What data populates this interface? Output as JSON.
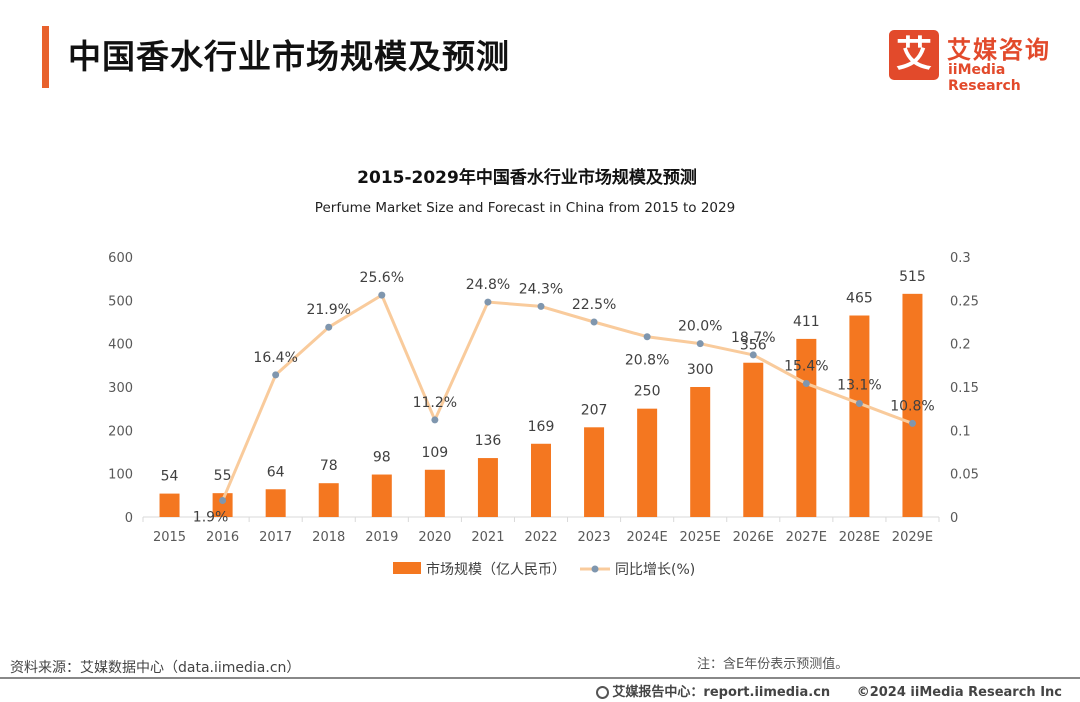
{
  "header": {
    "title": "中国香水行业市场规模及预测",
    "logo_box": "艾",
    "logo_cn": "艾媒咨询",
    "logo_en": "iiMedia Research"
  },
  "chart_data": {
    "type": "bar+line",
    "title": "2015-2029年中国香水行业市场规模及预测",
    "subtitle": "Perfume Market Size and Forecast in China from 2015 to 2029",
    "categories": [
      "2015",
      "2016",
      "2017",
      "2018",
      "2019",
      "2020",
      "2021",
      "2022",
      "2023",
      "2024E",
      "2025E",
      "2026E",
      "2027E",
      "2028E",
      "2029E"
    ],
    "series": [
      {
        "name": "市场规模（亿人民币）",
        "type": "bar",
        "axis": "left",
        "color": "#F47720",
        "values": [
          54,
          55,
          64,
          78,
          98,
          109,
          136,
          169,
          207,
          250,
          300,
          356,
          411,
          465,
          515
        ]
      },
      {
        "name": "同比增长(%)",
        "type": "line",
        "axis": "right",
        "color": "#F9CB9C",
        "marker_color": "#7F96AE",
        "values": [
          null,
          0.019,
          0.164,
          0.219,
          0.256,
          0.112,
          0.248,
          0.243,
          0.225,
          0.208,
          0.2,
          0.187,
          0.154,
          0.131,
          0.108
        ],
        "labels": [
          "",
          "1.9%",
          "16.4%",
          "21.9%",
          "25.6%",
          "11.2%",
          "24.8%",
          "24.3%",
          "22.5%",
          "20.8%",
          "20.0%",
          "18.7%",
          "15.4%",
          "13.1%",
          "10.8%"
        ]
      }
    ],
    "y_left": {
      "min": 0,
      "max": 600,
      "ticks": [
        0,
        100,
        200,
        300,
        400,
        500,
        600
      ]
    },
    "y_right": {
      "min": 0,
      "max": 0.3,
      "ticks": [
        "0",
        "0.05",
        "0.1",
        "0.15",
        "0.2",
        "0.25",
        "0.3"
      ]
    },
    "legend_position": "bottom"
  },
  "footer": {
    "source": "资料来源：艾媒数据中心（data.iimedia.cn）",
    "note": "注：含E年份表示预测值。",
    "report_center": "艾媒报告中心：report.iimedia.cn",
    "copyright": "©2024  iiMedia Research  Inc"
  }
}
